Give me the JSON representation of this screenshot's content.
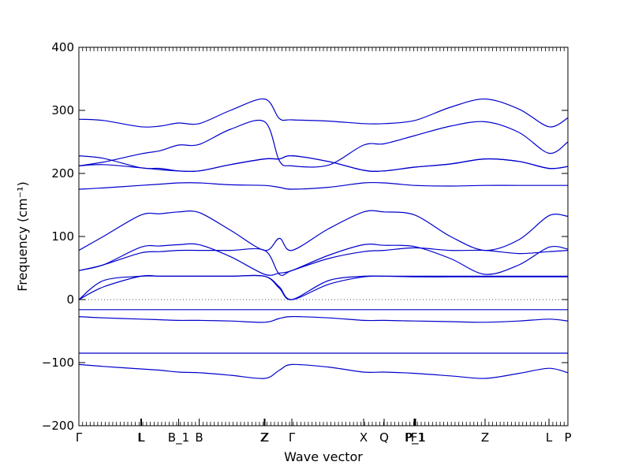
{
  "chart_data": {
    "type": "line",
    "xlabel": "Wave vector",
    "ylabel": "Frequency (cm⁻¹)",
    "ylim": [
      -200,
      400
    ],
    "xlim": [
      0,
      1
    ],
    "yticks": [
      -200,
      -100,
      0,
      100,
      200,
      300,
      400
    ],
    "high_symmetry_points": [
      {
        "label": "Γ",
        "x": 0.0
      },
      {
        "label": "L",
        "x": 0.1266
      },
      {
        "label": "L",
        "x": 0.1282
      },
      {
        "label": "B_1",
        "x": 0.204
      },
      {
        "label": "B",
        "x": 0.246
      },
      {
        "label": "Z",
        "x": 0.379
      },
      {
        "label": "Z",
        "x": 0.3806
      },
      {
        "label": "Γ",
        "x": 0.4355
      },
      {
        "label": "X",
        "x": 0.5823
      },
      {
        "label": "Q",
        "x": 0.6242
      },
      {
        "label": "F",
        "x": 0.6855
      },
      {
        "label": "P_1",
        "x": 0.6871
      },
      {
        "label": "P_1",
        "x": 0.6887
      },
      {
        "label": "Z",
        "x": 0.8306
      },
      {
        "label": "L",
        "x": 0.9613
      },
      {
        "label": "P",
        "x": 1.0
      }
    ],
    "grid": false,
    "zero_line": true,
    "line_color": "#0000cc",
    "x": [
      0,
      0.05,
      0.1266,
      0.166,
      0.204,
      0.246,
      0.31,
      0.3798,
      0.41,
      0.4355,
      0.51,
      0.5823,
      0.6242,
      0.6871,
      0.76,
      0.8306,
      0.9,
      0.9613,
      1.0
    ],
    "series": [
      {
        "values": [
          286,
          284,
          274,
          275,
          280,
          279,
          300,
          318,
          287,
          285,
          283,
          279,
          279,
          284,
          305,
          318,
          302,
          274,
          288
        ]
      },
      {
        "values": [
          212,
          218,
          231,
          236,
          245,
          246,
          270,
          282,
          220,
          212,
          213,
          245,
          247,
          260,
          275,
          282,
          265,
          232,
          250
        ]
      },
      {
        "values": [
          228,
          224,
          209,
          208,
          204,
          204,
          214,
          223,
          223,
          228,
          219,
          205,
          204,
          210,
          215,
          223,
          219,
          208,
          211
        ]
      },
      {
        "values": [
          212,
          214,
          209,
          206,
          204,
          204,
          214,
          223,
          223,
          228,
          219,
          205,
          204,
          210,
          215,
          223,
          219,
          208,
          211
        ]
      },
      {
        "values": [
          175,
          177,
          181,
          183,
          185,
          185,
          182,
          181,
          178,
          175,
          178,
          185,
          185,
          181,
          180,
          181,
          181,
          181,
          181
        ]
      },
      {
        "values": [
          78,
          100,
          134,
          136,
          139,
          138,
          110,
          78,
          97,
          78,
          112,
          139,
          139,
          134,
          100,
          78,
          95,
          133,
          132
        ]
      },
      {
        "values": [
          46,
          55,
          83,
          85,
          87,
          87,
          68,
          40,
          42,
          46,
          70,
          87,
          86,
          84,
          65,
          40,
          55,
          83,
          80
        ]
      },
      {
        "values": [
          46,
          55,
          74,
          76,
          78,
          78,
          78,
          78,
          40,
          46,
          65,
          76,
          78,
          82,
          78,
          78,
          73,
          76,
          78
        ]
      },
      {
        "values": [
          0,
          30,
          37,
          37,
          37,
          37,
          37,
          37,
          18,
          0,
          30,
          37,
          37,
          37,
          37,
          37,
          37,
          37,
          37
        ]
      },
      {
        "values": [
          0,
          20,
          37,
          37,
          37,
          37,
          37,
          37,
          20,
          0,
          24,
          36,
          37,
          36,
          36,
          36,
          36,
          36,
          36
        ]
      },
      {
        "values": [
          -16,
          -16,
          -16,
          -16,
          -16,
          -16,
          -16,
          -16,
          -16,
          -16,
          -16,
          -16,
          -16,
          -16,
          -16,
          -16,
          -16,
          -16,
          -16
        ]
      },
      {
        "values": [
          -27,
          -29,
          -31,
          -32,
          -33,
          -33,
          -34,
          -36,
          -30,
          -27,
          -29,
          -33,
          -33,
          -34,
          -35,
          -36,
          -34,
          -31,
          -34
        ]
      },
      {
        "values": [
          -85,
          -85,
          -85,
          -85,
          -85,
          -85,
          -85,
          -85,
          -85,
          -85,
          -85,
          -85,
          -85,
          -85,
          -85,
          -85,
          -85,
          -85,
          -85
        ]
      },
      {
        "values": [
          -103,
          -106,
          -110,
          -112,
          -115,
          -116,
          -120,
          -125,
          -112,
          -103,
          -107,
          -115,
          -115,
          -117,
          -121,
          -125,
          -117,
          -109,
          -116
        ]
      }
    ]
  }
}
